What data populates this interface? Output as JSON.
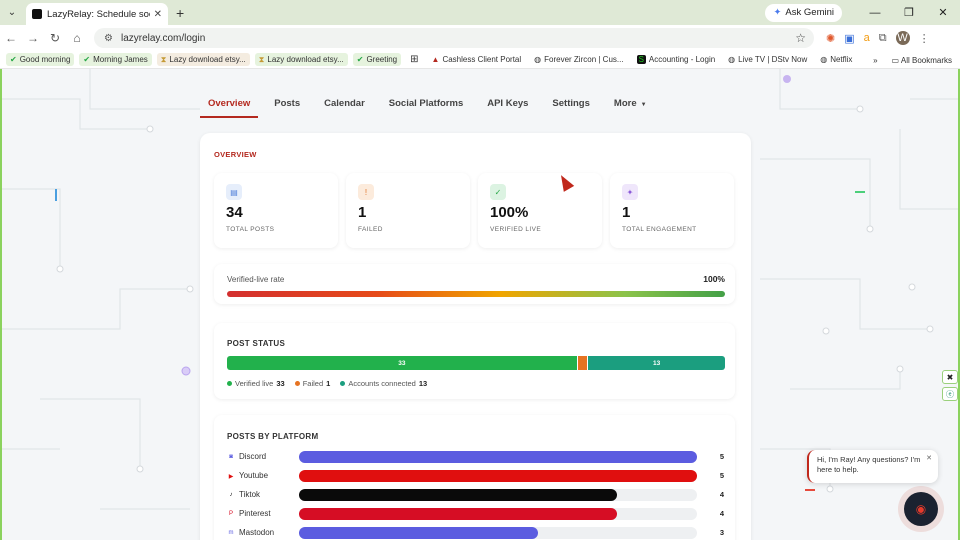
{
  "browser": {
    "tab_title": "LazyRelay: Schedule social posts",
    "gemini_label": "Ask Gemini",
    "url": "lazyrelay.com/login",
    "avatar_letter": "W",
    "bookmarks": [
      {
        "label": "Good morning",
        "style": "green",
        "icon": "check"
      },
      {
        "label": "Morning James",
        "style": "green",
        "icon": "check"
      },
      {
        "label": "Lazy download etsy...",
        "style": "tan",
        "icon": "hourglass"
      },
      {
        "label": "Lazy download etsy...",
        "style": "green",
        "icon": "hourglass"
      },
      {
        "label": "Greeting",
        "style": "green",
        "icon": "check"
      }
    ],
    "bookmarks_plain": [
      "Cashless Client Portal",
      "Forever Zircon | Cus...",
      "Accounting - Login",
      "Live TV | DStv Now",
      "Netflix"
    ],
    "all_bookmarks": "All Bookmarks"
  },
  "nav": {
    "tabs": [
      "Overview",
      "Posts",
      "Calendar",
      "Social Platforms",
      "API Keys",
      "Settings",
      "More"
    ],
    "active": 0
  },
  "overview": {
    "title": "OVERVIEW",
    "stats": [
      {
        "value": "34",
        "label": "TOTAL POSTS",
        "icon": "document-icon",
        "color": "#4f7fd9",
        "bg": "#e6eefb"
      },
      {
        "value": "1",
        "label": "FAILED",
        "icon": "alert-icon",
        "color": "#e0762b",
        "bg": "#fcebdc"
      },
      {
        "value": "100%",
        "label": "VERIFIED LIVE",
        "icon": "check-circle-icon",
        "color": "#27a746",
        "bg": "#dcf3e2"
      },
      {
        "value": "1",
        "label": "TOTAL ENGAGEMENT",
        "icon": "sparkle-icon",
        "color": "#8a5ad8",
        "bg": "#efe6fb"
      }
    ],
    "verified_rate": {
      "label": "Verified-live rate",
      "value": "100%"
    },
    "post_status": {
      "title": "POST STATUS",
      "segments": [
        {
          "name": "Verified live",
          "value": 33,
          "color": "#22b14c"
        },
        {
          "name": "Failed",
          "value": 1,
          "color": "#e67322"
        },
        {
          "name": "Accounts connected",
          "value": 13,
          "color": "#1b9e7f"
        }
      ]
    },
    "platforms": {
      "title": "POSTS BY PLATFORM",
      "max": 5,
      "items": [
        {
          "name": "Discord",
          "value": 5,
          "color": "#5b5ce0",
          "icon": "discord-icon"
        },
        {
          "name": "Youtube",
          "value": 5,
          "color": "#e00f0f",
          "icon": "youtube-icon"
        },
        {
          "name": "Tiktok",
          "value": 4,
          "color": "#0a0a0a",
          "icon": "tiktok-icon"
        },
        {
          "name": "Pinterest",
          "value": 4,
          "color": "#d60d24",
          "icon": "pinterest-icon"
        },
        {
          "name": "Mastodon",
          "value": 3,
          "color": "#5b5ce0",
          "icon": "mastodon-icon"
        }
      ]
    }
  },
  "chat": {
    "message": "Hi, I'm Ray! Any questions? I'm here to help."
  }
}
